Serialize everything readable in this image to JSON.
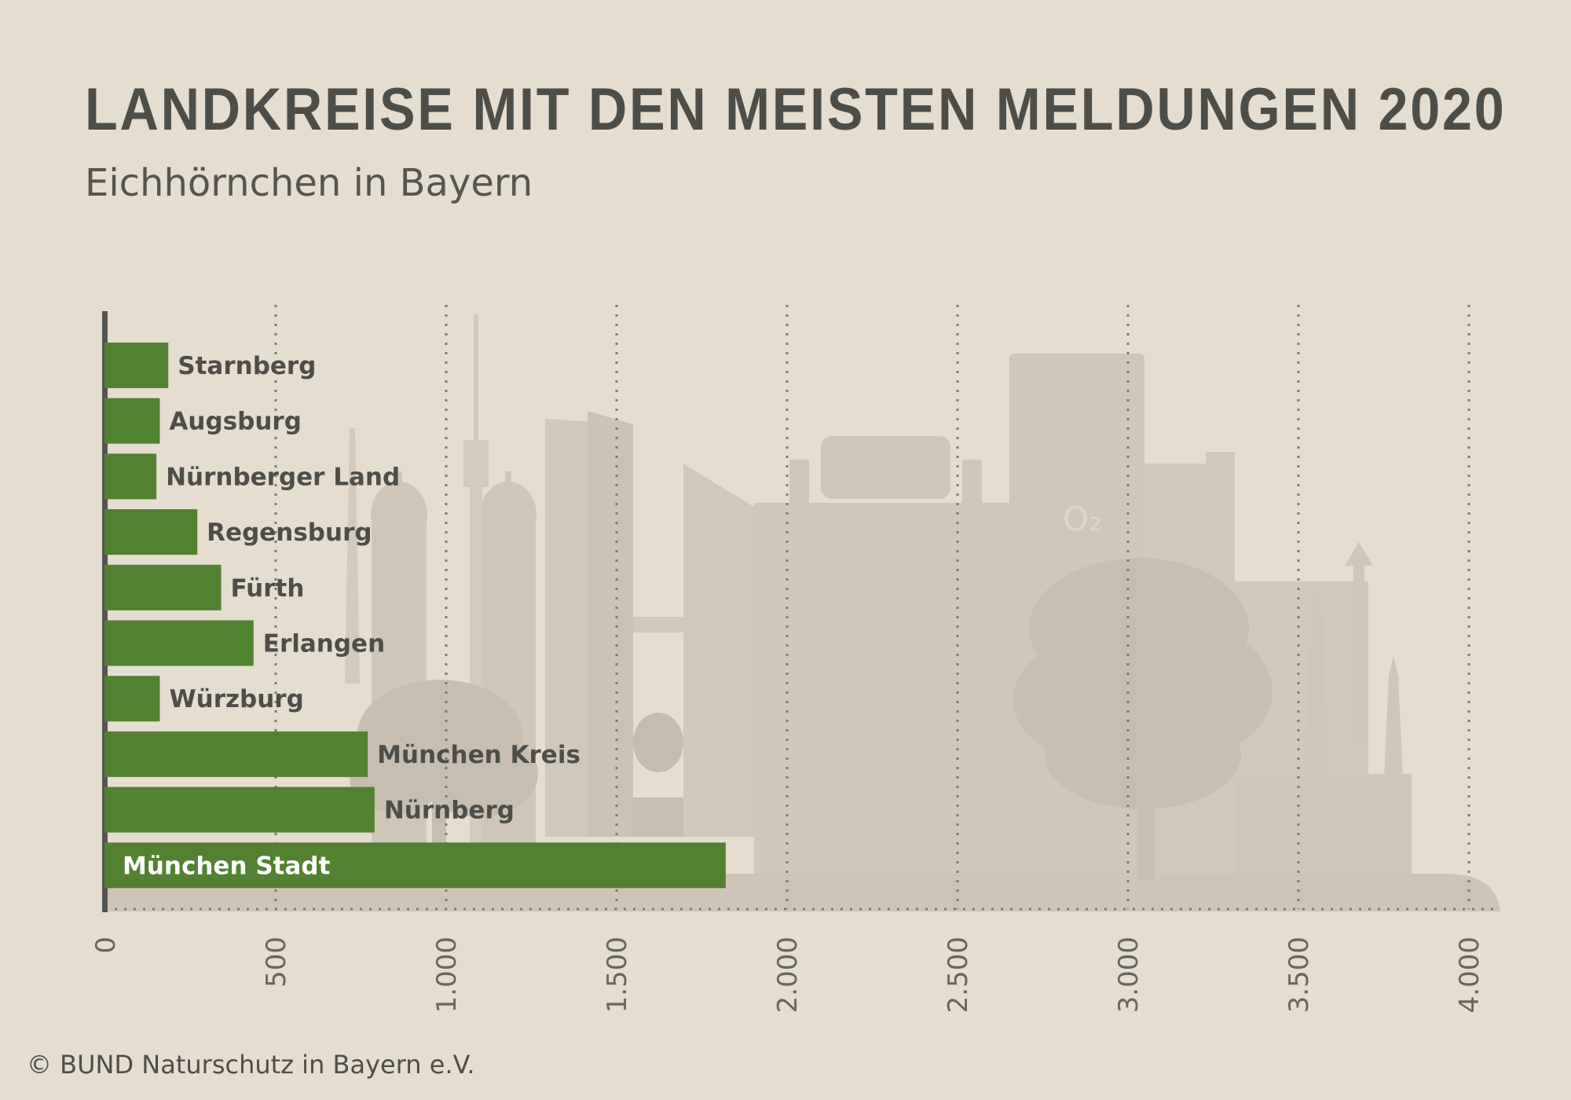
{
  "header": {
    "title": "LANDKREISE MIT DEN MEISTEN MELDUNGEN 2020",
    "subtitle": "Eichhörnchen in Bayern"
  },
  "footer": {
    "copyright": "© BUND Naturschutz in Bayern e.V."
  },
  "colors": {
    "background": "#e6ddd1",
    "bar": "#528132",
    "axis": "#555550",
    "label_outside": "#4e4e49",
    "label_inside": "#ffffff",
    "skyline": "#cfc6b9",
    "skyline_dark": "#c7beb1"
  },
  "chart_data": {
    "type": "bar",
    "orientation": "horizontal",
    "categories": [
      "Starnberg",
      "Augsburg",
      "Nürnberger Land",
      "Regensburg",
      "Fürth",
      "Erlangen",
      "Würzburg",
      "München Kreis",
      "Nürnberg",
      "München Stadt"
    ],
    "values": [
      185,
      160,
      150,
      270,
      340,
      435,
      160,
      770,
      790,
      1820
    ],
    "xlim": [
      0,
      4000
    ],
    "xticks": [
      0,
      500,
      1000,
      1500,
      2000,
      2500,
      3000,
      3500,
      4000
    ],
    "xtick_labels": [
      "0",
      "500",
      "1.000",
      "1.500",
      "2.000",
      "2.500",
      "3.000",
      "3.500",
      "4.000"
    ],
    "grid": true,
    "grid_style": "dotted vertical",
    "legend": "none"
  }
}
